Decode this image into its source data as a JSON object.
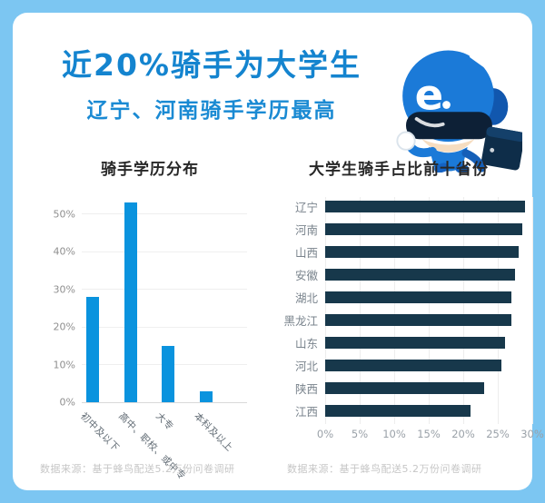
{
  "header": {
    "title": "近20%骑手为大学生",
    "subtitle": "辽宁、河南骑手学历最高"
  },
  "mascot": {
    "logo_letter": "e"
  },
  "sources": {
    "left": "数据来源：基于蜂鸟配送5.2万份问卷调研",
    "right": "数据来源：基于蜂鸟配送5.2万份问卷调研"
  },
  "colors": {
    "frame_blue": "#7cc6f2",
    "title_blue": "#1484cf",
    "edu_bar_blue": "#0a93de",
    "prov_bar_navy": "#17384b",
    "source_gray": "#c6c6c6"
  },
  "chart_data": [
    {
      "type": "bar",
      "title": "骑手学历分布",
      "categories": [
        "初中及以下",
        "高中、职校、或中专",
        "大专",
        "本科及以上"
      ],
      "values": [
        28,
        53,
        15,
        3
      ],
      "value_unit": "%",
      "xlabel": "",
      "ylabel": "",
      "ylim": [
        0,
        55
      ],
      "yticks": [
        0,
        10,
        20,
        30,
        40,
        50
      ],
      "ytick_labels": [
        "0%",
        "10%",
        "20%",
        "30%",
        "40%",
        "50%"
      ],
      "grid": "horizontal",
      "legend": "none",
      "bar_color": "#0a93de"
    },
    {
      "type": "bar-horizontal",
      "title": "大学生骑手占比前十省份",
      "categories": [
        "辽宁",
        "河南",
        "山西",
        "安徽",
        "湖北",
        "黑龙江",
        "山东",
        "河北",
        "陕西",
        "江西"
      ],
      "values": [
        29,
        28.5,
        28,
        27.5,
        27,
        27,
        26,
        25.5,
        23,
        21
      ],
      "value_unit": "%",
      "xlim": [
        0,
        30
      ],
      "xticks": [
        0,
        5,
        10,
        15,
        20,
        25,
        30
      ],
      "xtick_labels": [
        "0%",
        "5%",
        "10%",
        "15%",
        "20%",
        "25%",
        "30%"
      ],
      "grid": "vertical",
      "legend": "none",
      "bar_color": "#17384b"
    }
  ]
}
